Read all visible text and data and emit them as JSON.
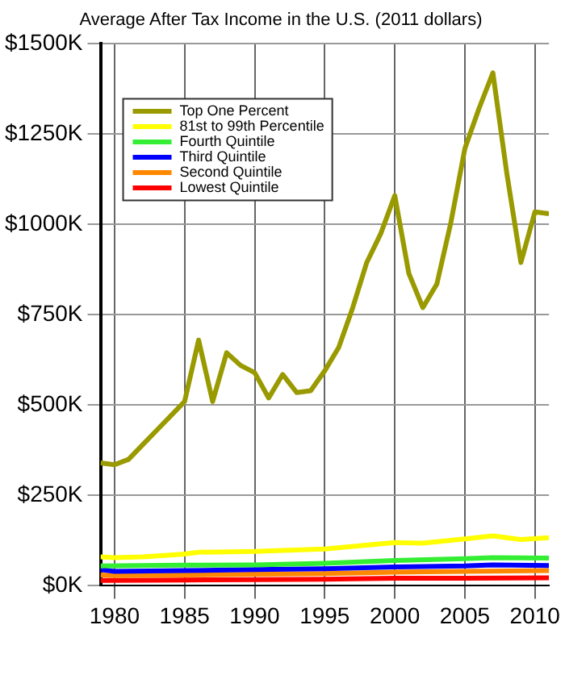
{
  "chart_data": {
    "type": "line",
    "title": "Average After Tax Income in the U.S. (2011 dollars)",
    "xlim": [
      1979,
      2011
    ],
    "xticks": [
      1980,
      1985,
      1990,
      1995,
      2000,
      2005,
      2010
    ],
    "ylim": [
      0,
      1500
    ],
    "yticks": [
      {
        "value": 0,
        "label": "$0K"
      },
      {
        "value": 250,
        "label": "$250K"
      },
      {
        "value": 500,
        "label": "$500K"
      },
      {
        "value": 750,
        "label": "$750K"
      },
      {
        "value": 1000,
        "label": "$1000K"
      },
      {
        "value": 1250,
        "label": "$1250K"
      },
      {
        "value": 1500,
        "label": "$1500K"
      }
    ],
    "grid": true,
    "legend": "top left",
    "marker": "none",
    "line_style": "solid",
    "series": [
      {
        "name": "Top One Percent",
        "color": "#999900",
        "x": [
          1979,
          1980,
          1981,
          1982,
          1983,
          1984,
          1985,
          1986,
          1987,
          1988,
          1989,
          1990,
          1991,
          1992,
          1993,
          1994,
          1995,
          1996,
          1997,
          1998,
          1999,
          2000,
          2001,
          2002,
          2003,
          2004,
          2005,
          2006,
          2007,
          2008,
          2009,
          2010,
          2011
        ],
        "values": [
          340,
          335,
          350,
          390,
          430,
          470,
          510,
          680,
          510,
          645,
          610,
          590,
          520,
          585,
          535,
          540,
          595,
          660,
          770,
          895,
          975,
          1080,
          865,
          770,
          835,
          1005,
          1210,
          1320,
          1420,
          1140,
          895,
          1035,
          1030
        ]
      },
      {
        "name": "81st to 99th Percentile",
        "color": "#ffff00",
        "x": [
          1979,
          1980,
          1982,
          1984,
          1985,
          1986,
          1990,
          1995,
          2000,
          2002,
          2005,
          2007,
          2009,
          2011
        ],
        "values": [
          80,
          78,
          80,
          85,
          88,
          93,
          95,
          102,
          120,
          118,
          130,
          138,
          128,
          133
        ]
      },
      {
        "name": "Fourth Quintile",
        "color": "#33ee33",
        "x": [
          1979,
          1985,
          1990,
          1995,
          2000,
          2005,
          2007,
          2011
        ],
        "values": [
          55,
          57,
          58,
          62,
          70,
          75,
          78,
          77
        ]
      },
      {
        "name": "Third Quintile",
        "color": "#0000ff",
        "x": [
          1979,
          1980,
          1985,
          1990,
          1995,
          2000,
          2005,
          2007,
          2011
        ],
        "values": [
          45,
          40,
          42,
          45,
          47,
          52,
          55,
          58,
          56
        ]
      },
      {
        "name": "Second Quintile",
        "color": "#ff8800",
        "x": [
          1979,
          1980,
          1985,
          1990,
          1995,
          2000,
          2005,
          2011
        ],
        "values": [
          30,
          28,
          30,
          32,
          34,
          38,
          40,
          42
        ]
      },
      {
        "name": "Lowest Quintile",
        "color": "#ff0000",
        "x": [
          1979,
          1985,
          1990,
          1995,
          2000,
          2005,
          2011
        ],
        "values": [
          15,
          16,
          17,
          18,
          21,
          21,
          22
        ]
      }
    ]
  }
}
